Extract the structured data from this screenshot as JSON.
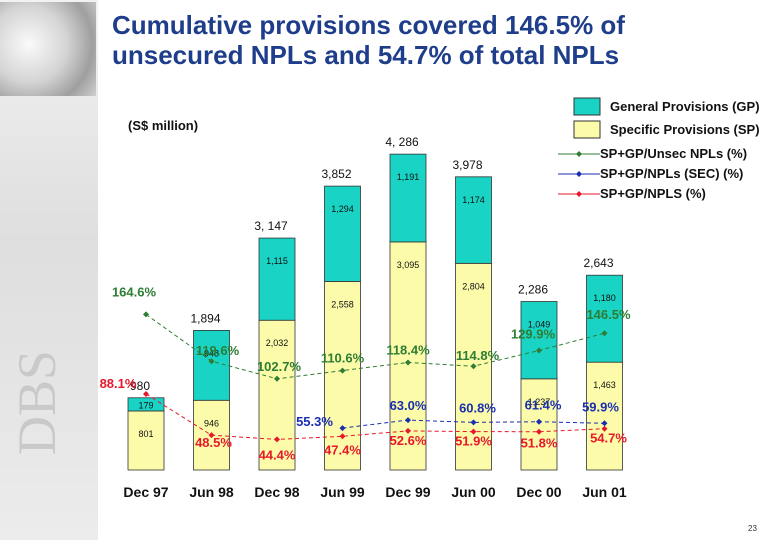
{
  "title": "Cumulative provisions covered 146.5% of unsecured NPLs and 54.7% of total NPLs",
  "page_number": "23",
  "chart_data": {
    "type": "bar",
    "subtitle": "(S$ million)",
    "categories": [
      "Dec 97",
      "Jun 98",
      "Dec 98",
      "Jun 99",
      "Dec 99",
      "Jun 00",
      "Dec 00",
      "Jun 01"
    ],
    "bar_series": [
      {
        "name": "Specific Provisions (SP)",
        "color": "#fbfbaa",
        "values": [
          801,
          946,
          2032,
          2558,
          3095,
          2804,
          1237,
          1463
        ]
      },
      {
        "name": "General Provisions (GP)",
        "color": "#19d3c5",
        "values": [
          179,
          948,
          1115,
          1294,
          1191,
          1174,
          1049,
          1180
        ]
      }
    ],
    "totals": [
      980,
      1894,
      3147,
      3852,
      4286,
      3978,
      2286,
      2643
    ],
    "total_labels": [
      "980",
      "1,894",
      "3, 147",
      "3,852",
      "4, 286",
      "3,978",
      "2,286",
      "2,643"
    ],
    "sp_labels": [
      "801",
      "946",
      "2,032",
      "2,558",
      "3,095",
      "2,804",
      "1,237",
      "1,463"
    ],
    "gp_labels": [
      "179",
      "948",
      "1,115",
      "1,294",
      "1,191",
      "1,174",
      "1,049",
      "1,180"
    ],
    "line_series": [
      {
        "name": "SP+GP/Unsec NPLs (%)",
        "color": "#2e7d32",
        "values": [
          164.6,
          119.6,
          102.7,
          110.6,
          118.4,
          114.8,
          129.9,
          146.5
        ],
        "labels": [
          "164.6%",
          "119.6%",
          "102.7%",
          "110.6%",
          "118.4%",
          "114.8%",
          "129.9%",
          "146.5%"
        ]
      },
      {
        "name": "SP+GP/NPLs (SEC) (%)",
        "color": "#1a2fb0",
        "values": [
          null,
          null,
          null,
          55.3,
          63.0,
          60.8,
          61.4,
          59.9
        ],
        "labels": [
          "",
          "",
          "",
          "55.3%",
          "63.0%",
          "60.8%",
          "61.4%",
          "59.9%"
        ]
      },
      {
        "name": "SP+GP/NPLS (%)",
        "color": "#e8182c",
        "values": [
          88.1,
          48.5,
          44.4,
          47.4,
          52.6,
          51.9,
          51.8,
          54.7
        ],
        "labels": [
          "88.1%",
          "48.5%",
          "44.4%",
          "47.4%",
          "52.6%",
          "51.9%",
          "51.8%",
          "54.7%"
        ]
      }
    ],
    "legend_position": "top-right",
    "grid": false
  }
}
